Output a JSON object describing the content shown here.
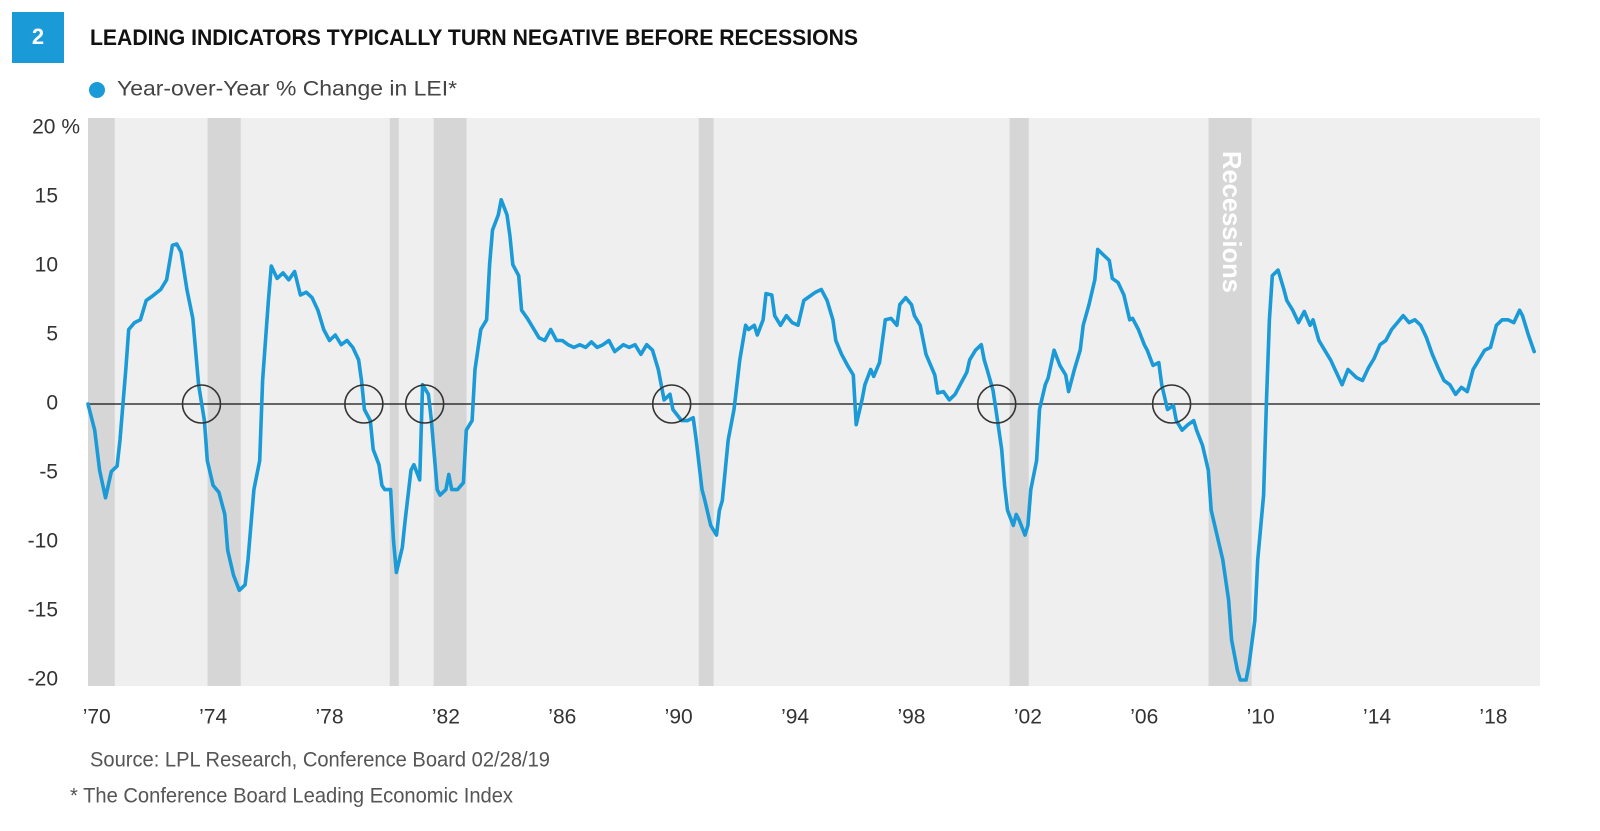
{
  "chart_data": {
    "type": "line",
    "badge": "2",
    "title": "LEADING INDICATORS TYPICALLY TURN NEGATIVE BEFORE RECESSIONS",
    "source": "Source: LPL Research, Conference Board  02/28/19",
    "note": "* The Conference Board Leading Economic Index",
    "recession_label": "Recessions",
    "recessions": [
      [
        1969.7,
        1970.62
      ],
      [
        1973.81,
        1974.95
      ],
      [
        1980.07,
        1980.38
      ],
      [
        1981.58,
        1982.71
      ],
      [
        1990.69,
        1991.2
      ],
      [
        2001.37,
        2002.03
      ],
      [
        2008.21,
        2009.69
      ]
    ],
    "crossings": [
      1973.6,
      1979.18,
      1981.27,
      1989.76,
      2000.93,
      2006.94
    ],
    "xlim": [
      1969.7,
      2019.6
    ],
    "xticks": [
      {
        "value": 1970,
        "label": "’70"
      },
      {
        "value": 1974,
        "label": "’74"
      },
      {
        "value": 1978,
        "label": "’78"
      },
      {
        "value": 1982,
        "label": "’82"
      },
      {
        "value": 1986,
        "label": "’86"
      },
      {
        "value": 1990,
        "label": "’90"
      },
      {
        "value": 1994,
        "label": "’94"
      },
      {
        "value": 1998,
        "label": "’98"
      },
      {
        "value": 2002,
        "label": "’02"
      },
      {
        "value": 2006,
        "label": "’06"
      },
      {
        "value": 2010,
        "label": "’10"
      },
      {
        "value": 2014,
        "label": "’14"
      },
      {
        "value": 2018,
        "label": "’18"
      }
    ],
    "ylim": [
      -20,
      20
    ],
    "yticks": [
      {
        "value": 20,
        "label": "20 %"
      },
      15,
      10,
      5,
      0,
      -5,
      -10,
      -15,
      -20
    ],
    "zero_line": true,
    "x": [
      1969.7,
      1969.93,
      1970.1,
      1970.3,
      1970.5,
      1970.7,
      1970.8,
      1971.0,
      1971.1,
      1971.3,
      1971.5,
      1971.7,
      1971.9,
      1972.2,
      1972.4,
      1972.6,
      1972.75,
      1972.9,
      1973.1,
      1973.3,
      1973.5,
      1973.7,
      1973.8,
      1974.0,
      1974.2,
      1974.4,
      1974.5,
      1974.7,
      1974.9,
      1975.1,
      1975.2,
      1975.4,
      1975.6,
      1975.7,
      1975.9,
      1976.0,
      1976.2,
      1976.4,
      1976.6,
      1976.8,
      1977.0,
      1977.2,
      1977.4,
      1977.6,
      1977.8,
      1978.0,
      1978.2,
      1978.4,
      1978.6,
      1978.8,
      1979.0,
      1979.1,
      1979.2,
      1979.4,
      1979.5,
      1979.7,
      1979.8,
      1979.9,
      1980.1,
      1980.2,
      1980.3,
      1980.5,
      1980.6,
      1980.8,
      1980.9,
      1981.1,
      1981.2,
      1981.4,
      1981.5,
      1981.7,
      1981.8,
      1982.0,
      1982.1,
      1982.2,
      1982.4,
      1982.6,
      1982.7,
      1982.9,
      1983.0,
      1983.2,
      1983.4,
      1983.5,
      1983.6,
      1983.8,
      1983.9,
      1984.1,
      1984.2,
      1984.3,
      1984.5,
      1984.6,
      1984.8,
      1985.0,
      1985.2,
      1985.4,
      1985.6,
      1985.8,
      1986.0,
      1986.2,
      1986.4,
      1986.6,
      1986.8,
      1987.0,
      1987.2,
      1987.4,
      1987.6,
      1987.8,
      1988.1,
      1988.3,
      1988.5,
      1988.7,
      1988.9,
      1989.1,
      1989.3,
      1989.5,
      1989.7,
      1989.8,
      1990.1,
      1990.3,
      1990.5,
      1990.6,
      1990.8,
      1990.9,
      1991.1,
      1991.3,
      1991.4,
      1991.5,
      1991.7,
      1991.9,
      1992.0,
      1992.1,
      1992.3,
      1992.4,
      1992.6,
      1992.7,
      1992.9,
      1993.0,
      1993.2,
      1993.3,
      1993.5,
      1993.7,
      1993.9,
      1994.1,
      1994.3,
      1994.5,
      1994.7,
      1994.9,
      1995.1,
      1995.3,
      1995.4,
      1995.6,
      1995.8,
      1996.0,
      1996.1,
      1996.3,
      1996.4,
      1996.6,
      1996.7,
      1996.9,
      1997.1,
      1997.3,
      1997.5,
      1997.6,
      1997.8,
      1998.0,
      1998.1,
      1998.3,
      1998.5,
      1998.8,
      1998.9,
      1999.1,
      1999.3,
      1999.5,
      1999.7,
      1999.9,
      2000.0,
      2000.2,
      2000.4,
      2000.5,
      2000.6,
      2000.8,
      2000.9,
      2001.1,
      2001.2,
      2001.3,
      2001.5,
      2001.6,
      2001.7,
      2001.9,
      2002.0,
      2002.1,
      2002.3,
      2002.4,
      2002.6,
      2002.7,
      2002.9,
      2003.1,
      2003.3,
      2003.4,
      2003.6,
      2003.8,
      2003.9,
      2004.1,
      2004.3,
      2004.4,
      2004.6,
      2004.8,
      2004.9,
      2005.1,
      2005.3,
      2005.5,
      2005.6,
      2005.8,
      2006.0,
      2006.1,
      2006.3,
      2006.5,
      2006.6,
      2006.8,
      2007.0,
      2007.1,
      2007.3,
      2007.5,
      2007.7,
      2007.8,
      2008.0,
      2008.2,
      2008.3,
      2008.5,
      2008.7,
      2008.9,
      2009.0,
      2009.2,
      2009.3,
      2009.5,
      2009.6,
      2009.8,
      2009.9,
      2010.1,
      2010.2,
      2010.3,
      2010.4,
      2010.6,
      2010.8,
      2010.9,
      2011.1,
      2011.3,
      2011.5,
      2011.7,
      2011.8,
      2012.0,
      2012.2,
      2012.4,
      2012.6,
      2012.8,
      2013.0,
      2013.3,
      2013.5,
      2013.7,
      2013.9,
      2014.1,
      2014.3,
      2014.5,
      2014.7,
      2014.9,
      2015.1,
      2015.3,
      2015.5,
      2015.7,
      2015.9,
      2016.1,
      2016.3,
      2016.5,
      2016.7,
      2016.9,
      2017.1,
      2017.3,
      2017.5,
      2017.7,
      2017.9,
      2018.1,
      2018.3,
      2018.5,
      2018.7,
      2018.9,
      2019.0,
      2019.2,
      2019.4
    ],
    "series": [
      {
        "name": "Year-over-Year % Change in LEI*",
        "color": "#1a9ad7",
        "values": [
          0,
          -1.9,
          -4.8,
          -6.8,
          -4.9,
          -4.5,
          -2.6,
          2.5,
          5.4,
          5.9,
          6.1,
          7.5,
          7.8,
          8.3,
          9.0,
          11.5,
          11.6,
          11.0,
          8.3,
          6.2,
          1.4,
          -1.2,
          -4.1,
          -5.9,
          -6.4,
          -8.0,
          -10.6,
          -12.4,
          -13.5,
          -13.1,
          -11.3,
          -6.2,
          -4.1,
          1.7,
          7.5,
          10.0,
          9.1,
          9.5,
          9.0,
          9.6,
          7.9,
          8.1,
          7.7,
          6.8,
          5.4,
          4.6,
          5.0,
          4.3,
          4.6,
          4.1,
          3.2,
          1.7,
          -0.4,
          -1.2,
          -3.3,
          -4.4,
          -5.9,
          -6.2,
          -6.2,
          -9.9,
          -12.2,
          -10.4,
          -8.4,
          -4.8,
          -4.4,
          -5.5,
          1.4,
          0.7,
          -1.2,
          -6.2,
          -6.6,
          -6.2,
          -5.1,
          -6.2,
          -6.2,
          -5.7,
          -1.9,
          -1.2,
          2.5,
          5.4,
          6.1,
          10.1,
          12.6,
          13.7,
          14.8,
          13.7,
          12.2,
          10.1,
          9.3,
          6.8,
          6.2,
          5.5,
          4.8,
          4.6,
          5.4,
          4.6,
          4.6,
          4.3,
          4.1,
          4.3,
          4.1,
          4.5,
          4.1,
          4.3,
          4.6,
          3.8,
          4.3,
          4.1,
          4.3,
          3.6,
          4.3,
          3.9,
          2.5,
          0.3,
          0.7,
          -0.4,
          -1.2,
          -1.2,
          -1.0,
          -2.6,
          -6.2,
          -7.0,
          -8.8,
          -9.5,
          -7.7,
          -7.0,
          -2.6,
          -0.4,
          1.4,
          3.2,
          5.7,
          5.4,
          5.7,
          5.0,
          6.1,
          8.0,
          7.9,
          6.4,
          5.7,
          6.4,
          5.9,
          5.7,
          7.5,
          7.8,
          8.1,
          8.3,
          7.5,
          6.1,
          4.6,
          3.6,
          2.8,
          2.1,
          -1.5,
          0.3,
          1.4,
          2.5,
          2.0,
          3.0,
          6.1,
          6.2,
          5.7,
          7.2,
          7.7,
          7.2,
          6.4,
          5.7,
          3.6,
          2.1,
          0.8,
          0.9,
          0.3,
          0.7,
          1.5,
          2.3,
          3.2,
          3.9,
          4.3,
          3.2,
          2.5,
          1.0,
          -0.4,
          -3.3,
          -5.9,
          -7.7,
          -8.8,
          -8.0,
          -8.4,
          -9.5,
          -8.8,
          -6.2,
          -4.1,
          -0.4,
          1.4,
          1.9,
          3.9,
          2.8,
          2.1,
          0.9,
          2.5,
          3.9,
          5.7,
          7.2,
          9.0,
          11.2,
          10.8,
          10.4,
          9.1,
          8.8,
          7.9,
          6.1,
          6.2,
          5.4,
          4.3,
          3.9,
          2.8,
          3.0,
          1.4,
          -0.4,
          -0.1,
          -1.2,
          -1.9,
          -1.5,
          -1.2,
          -1.9,
          -3.0,
          -4.8,
          -7.7,
          -9.5,
          -11.3,
          -14.2,
          -17.1,
          -19.3,
          -20,
          -20,
          -18.9,
          -15.7,
          -11.3,
          -6.6,
          0.3,
          6.1,
          9.3,
          9.7,
          8.3,
          7.5,
          6.8,
          5.9,
          6.7,
          5.7,
          6.1,
          4.6,
          3.9,
          3.2,
          2.3,
          1.4,
          2.5,
          1.9,
          1.7,
          2.6,
          3.3,
          4.3,
          4.6,
          5.4,
          5.9,
          6.4,
          5.9,
          6.1,
          5.7,
          4.8,
          3.6,
          2.6,
          1.7,
          1.4,
          0.7,
          1.2,
          0.9,
          2.5,
          3.2,
          3.9,
          4.1,
          5.7,
          6.1,
          6.1,
          5.9,
          6.8,
          6.4,
          5.0,
          3.8
        ]
      }
    ]
  }
}
